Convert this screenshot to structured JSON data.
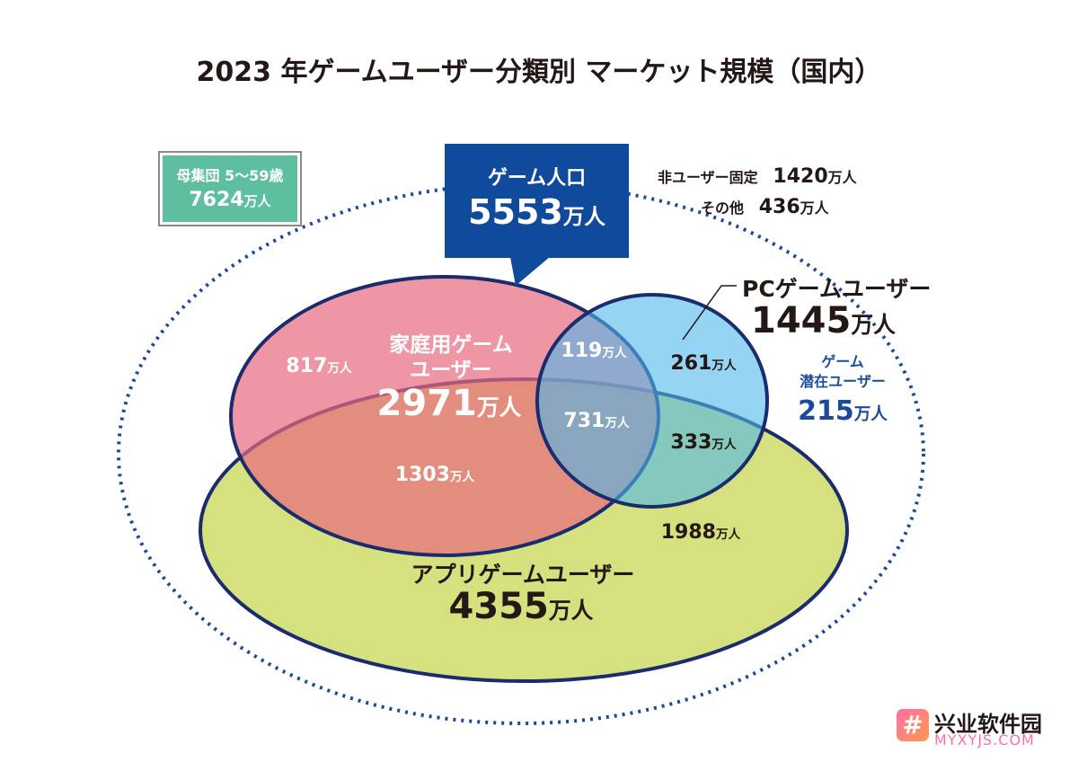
{
  "title": "2023 年ゲームユーザー分類別 マーケット規模（国内）",
  "population": {
    "label": "母集団 5〜59歳",
    "value": "7624",
    "unit": "万人"
  },
  "game_population": {
    "label": "ゲーム人口",
    "value": "5553",
    "unit": "万人"
  },
  "non_users": {
    "fixed_label": "非ユーザー固定",
    "fixed_value": "1420",
    "fixed_unit": "万人",
    "other_label": "その他",
    "other_value": "436",
    "other_unit": "万人"
  },
  "pc": {
    "label": "PCゲームユーザー",
    "value": "1445",
    "unit": "万人"
  },
  "potential": {
    "label1": "ゲーム",
    "label2": "潜在ユーザー",
    "value": "215",
    "unit": "万人"
  },
  "home": {
    "label1": "家庭用ゲーム",
    "label2": "ユーザー",
    "value": "2971",
    "unit": "万人"
  },
  "app": {
    "label": "アプリゲームユーザー",
    "value": "4355",
    "unit": "万人"
  },
  "regions": {
    "home_only": {
      "value": "817",
      "unit": "万人"
    },
    "home_pc": {
      "value": "119",
      "unit": "万人"
    },
    "pc_only": {
      "value": "261",
      "unit": "万人"
    },
    "all_three": {
      "value": "731",
      "unit": "万人"
    },
    "pc_app": {
      "value": "333",
      "unit": "万人"
    },
    "home_app": {
      "value": "1303",
      "unit": "万人"
    },
    "app_only": {
      "value": "1988",
      "unit": "万人"
    }
  },
  "watermark": {
    "cn": "兴业软件园",
    "url": "MYXYJS.COM"
  },
  "colors": {
    "home": "#e8697f",
    "pc": "#4fb8ea",
    "app": "#d5e07e",
    "game_box": "#0f4a9c",
    "outline": "#1a2c6e",
    "population_box": "#5dbf9f"
  }
}
